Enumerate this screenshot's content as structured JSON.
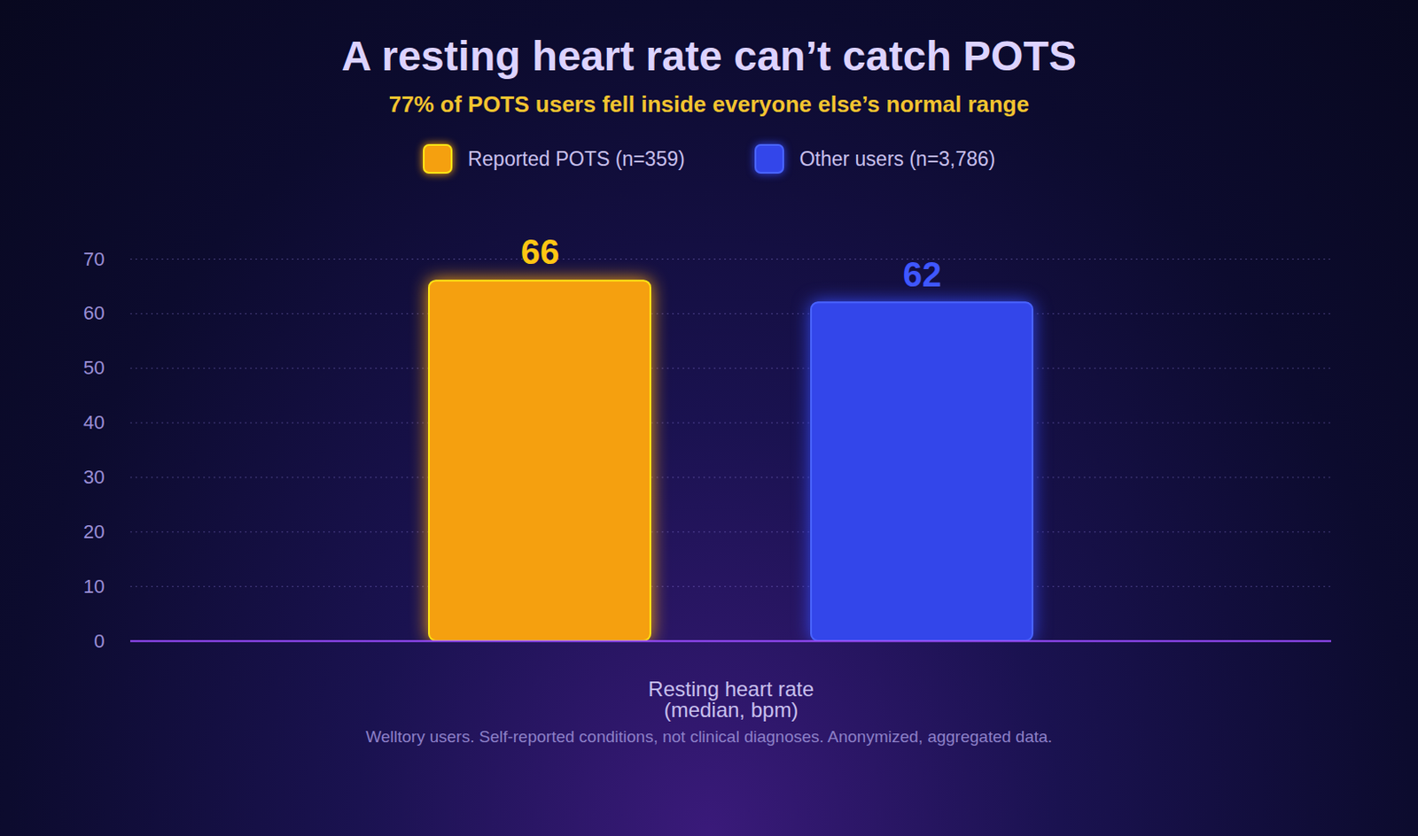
{
  "chart_data": {
    "type": "bar",
    "title": "A resting heart rate can’t catch POTS",
    "subtitle": "77% of POTS users fell inside everyone else’s normal range",
    "caption": "Welltory users. Self-reported conditions, not clinical diagnoses. Anonymized, aggregated data.",
    "categories": [
      "Resting heart rate (median, bpm)"
    ],
    "series": [
      {
        "name": "Reported POTS (n=359)",
        "color": "#f5a00f",
        "values": [
          66
        ]
      },
      {
        "name": "Other users (n=3,786)",
        "color": "#3346ea",
        "values": [
          62
        ]
      }
    ],
    "ylim": [
      0,
      70
    ],
    "yticks": [
      0,
      10,
      20,
      30,
      40,
      50,
      60,
      70
    ],
    "grid": true,
    "legend": "top",
    "data_labels": true
  }
}
